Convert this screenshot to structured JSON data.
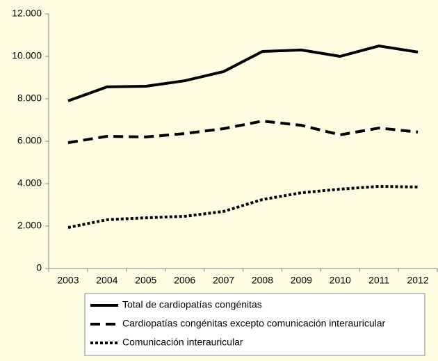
{
  "chart_data": {
    "type": "line",
    "categories": [
      "2003",
      "2004",
      "2005",
      "2006",
      "2007",
      "2008",
      "2009",
      "2010",
      "2011",
      "2012"
    ],
    "series": [
      {
        "name": "Total de cardiopatías congénitas",
        "color": "#000000",
        "dash": "solid",
        "values": [
          7900,
          8560,
          8590,
          8850,
          9280,
          10230,
          10300,
          10000,
          10490,
          10200
        ]
      },
      {
        "name": "Cardiopatías congénitas excepto comunicación interauricular",
        "color": "#000000",
        "dash": "dashed",
        "values": [
          5930,
          6230,
          6200,
          6360,
          6590,
          6950,
          6750,
          6300,
          6620,
          6430
        ]
      },
      {
        "name": "Comunicación interauricular",
        "color": "#000000",
        "dash": "dotted",
        "values": [
          1930,
          2300,
          2390,
          2460,
          2690,
          3250,
          3570,
          3740,
          3870,
          3840
        ]
      }
    ],
    "ylim": [
      0,
      12000
    ],
    "yticks": [
      0,
      {
        "value": 2000,
        "label": "2.000"
      },
      {
        "value": 4000,
        "label": "4.000"
      },
      {
        "value": 6000,
        "label": "6.000"
      },
      {
        "value": 8000,
        "label": "8.000"
      },
      {
        "value": 10000,
        "label": "10.000"
      },
      {
        "value": 12000,
        "label": "12.000"
      }
    ],
    "grid": false,
    "legend": "bottom"
  }
}
